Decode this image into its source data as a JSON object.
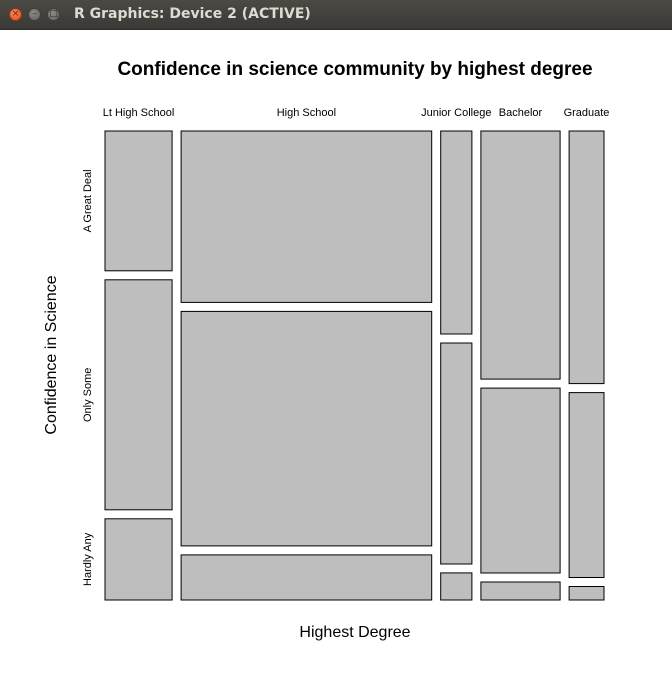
{
  "window": {
    "title": "R Graphics: Device 2 (ACTIVE)",
    "close_glyph": "×",
    "minimize_glyph": "–",
    "maximize_glyph": "□"
  },
  "chart_data": {
    "type": "mosaic",
    "title": "Confidence in science community by highest degree",
    "xlabel": "Highest Degree",
    "ylabel": "Confidence in Science",
    "categories": [
      "Lt High School",
      "High School",
      "Junior College",
      "Bachelor",
      "Graduate"
    ],
    "levels": [
      "A Great Deal",
      "Only Some",
      "Hardly Any"
    ],
    "column_widths": [
      0.144,
      0.538,
      0.067,
      0.17,
      0.075
    ],
    "series": [
      {
        "name": "A Great Deal",
        "values": [
          0.31,
          0.38,
          0.45,
          0.55,
          0.56
        ]
      },
      {
        "name": "Only Some",
        "values": [
          0.51,
          0.52,
          0.49,
          0.41,
          0.41
        ]
      },
      {
        "name": "Hardly Any",
        "values": [
          0.18,
          0.1,
          0.06,
          0.04,
          0.03
        ]
      }
    ],
    "colors": {
      "fill": "#bebebe",
      "stroke": "#000000"
    }
  }
}
